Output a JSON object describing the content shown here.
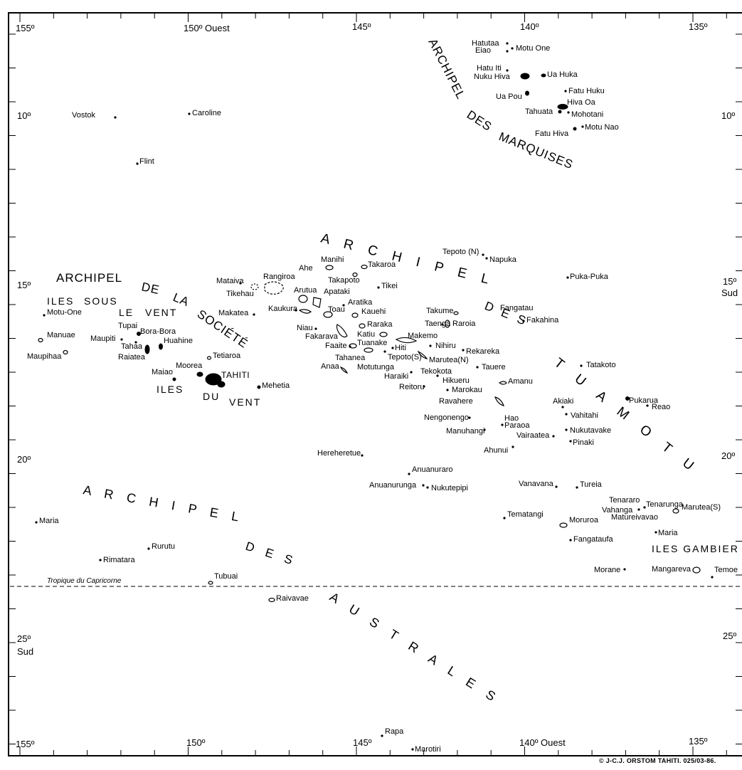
{
  "frame_labels": {
    "top": [
      {
        "text": "155º"
      },
      {
        "text": "150º Ouest"
      },
      {
        "text": "145º"
      },
      {
        "text": "140º"
      },
      {
        "text": "135º"
      }
    ],
    "bottom": [
      {
        "text": "155º"
      },
      {
        "text": "150º"
      },
      {
        "text": "145º"
      },
      {
        "text": "140º Ouest"
      },
      {
        "text": "135º"
      }
    ],
    "left": [
      {
        "text": "10º"
      },
      {
        "text": "15º"
      },
      {
        "text": "20º"
      },
      {
        "text": "25º"
      },
      {
        "text": "Sud"
      }
    ],
    "right": [
      {
        "text": "10º"
      },
      {
        "text": "15º"
      },
      {
        "text": "Sud"
      },
      {
        "text": "20º"
      },
      {
        "text": "25º"
      }
    ]
  },
  "tropic_label": "Tropique du Capricorne",
  "credit": "© J-C.J. ORSTOM TAHITI. 025/03-86.",
  "archipelagos": {
    "marquises": [
      "ARCHIPEL",
      "DES",
      "MARQUISES"
    ],
    "tuamotu": [
      "A R C H I P E L",
      "D E S",
      "T U A M O T U"
    ],
    "societe": [
      "ARCHIPEL",
      "DE",
      "LA",
      "SOCIÉTÉ"
    ],
    "australes": [
      "A R C H I P E L",
      "D E S",
      "A U S T R A L E S"
    ],
    "sous_le_vent": [
      "ILES",
      "SOUS",
      "LE",
      "VENT"
    ],
    "du_vent": [
      "ILES",
      "DU",
      "VENT"
    ],
    "gambier": "ILES GAMBIER"
  },
  "islands": [
    {
      "name": "Hatutaa"
    },
    {
      "name": "Eiao"
    },
    {
      "name": "Motu One"
    },
    {
      "name": "Hatu Iti"
    },
    {
      "name": "Nuku Hiva"
    },
    {
      "name": "Ua Huka"
    },
    {
      "name": "Ua Pou"
    },
    {
      "name": "Fatu Huku"
    },
    {
      "name": "Hiva Oa"
    },
    {
      "name": "Tahuata"
    },
    {
      "name": "Mohotani"
    },
    {
      "name": "Fatu Hiva"
    },
    {
      "name": "Motu Nao"
    },
    {
      "name": "Vostok"
    },
    {
      "name": "Caroline"
    },
    {
      "name": "Flint"
    },
    {
      "name": "Tepoto (N)"
    },
    {
      "name": "Napuka"
    },
    {
      "name": "Manihi"
    },
    {
      "name": "Ahe"
    },
    {
      "name": "Takaroa"
    },
    {
      "name": "Mataiva"
    },
    {
      "name": "Rangiroa"
    },
    {
      "name": "Takapoto"
    },
    {
      "name": "Tikei"
    },
    {
      "name": "Puka-Puka"
    },
    {
      "name": "Tikehau"
    },
    {
      "name": "Arutua"
    },
    {
      "name": "Apataki"
    },
    {
      "name": "Aratika"
    },
    {
      "name": "Fangatau"
    },
    {
      "name": "Makatea"
    },
    {
      "name": "Kaukura"
    },
    {
      "name": "Toau"
    },
    {
      "name": "Kauehi"
    },
    {
      "name": "Takume"
    },
    {
      "name": "Fakahina"
    },
    {
      "name": "Motu-One"
    },
    {
      "name": "Tupai"
    },
    {
      "name": "Bora-Bora"
    },
    {
      "name": "Niau"
    },
    {
      "name": "Raraka"
    },
    {
      "name": "Taenga"
    },
    {
      "name": "Raroia"
    },
    {
      "name": "Manuae"
    },
    {
      "name": "Maupiti"
    },
    {
      "name": "Tahaa"
    },
    {
      "name": "Huahine"
    },
    {
      "name": "Fakarava"
    },
    {
      "name": "Katiu"
    },
    {
      "name": "Makemo"
    },
    {
      "name": "Nihiru"
    },
    {
      "name": "Raiatea"
    },
    {
      "name": "Faaite"
    },
    {
      "name": "Tuanake"
    },
    {
      "name": "Hiti"
    },
    {
      "name": "Maupihaa"
    },
    {
      "name": "Tetiaroa"
    },
    {
      "name": "Tahanea"
    },
    {
      "name": "Tepoto(S)"
    },
    {
      "name": "Marutea(N)"
    },
    {
      "name": "Rekareka"
    },
    {
      "name": "Moorea"
    },
    {
      "name": "Anaa"
    },
    {
      "name": "Motutunga"
    },
    {
      "name": "Tauere"
    },
    {
      "name": "Tatakoto"
    },
    {
      "name": "Maiao"
    },
    {
      "name": "TAHITI"
    },
    {
      "name": "Tekokota"
    },
    {
      "name": "Haraiki"
    },
    {
      "name": "Hikueru"
    },
    {
      "name": "Amanu"
    },
    {
      "name": "Mehetia"
    },
    {
      "name": "Reitoru"
    },
    {
      "name": "Marokau"
    },
    {
      "name": "Ravahere"
    },
    {
      "name": "Hao"
    },
    {
      "name": "Pukarua"
    },
    {
      "name": "Akiaki"
    },
    {
      "name": "Reao"
    },
    {
      "name": "Vahitahi"
    },
    {
      "name": "Nengonengo"
    },
    {
      "name": "Paraoa"
    },
    {
      "name": "Manuhangi"
    },
    {
      "name": "Nukutavake"
    },
    {
      "name": "Vairaatea"
    },
    {
      "name": "Pinaki"
    },
    {
      "name": "Ahunui"
    },
    {
      "name": "Hereheretue"
    },
    {
      "name": "Anuanuraro"
    },
    {
      "name": "Anuanurunga"
    },
    {
      "name": "Nukutepipi"
    },
    {
      "name": "Vanavana"
    },
    {
      "name": "Tureia"
    },
    {
      "name": "Tenararo"
    },
    {
      "name": "Tenarunga"
    },
    {
      "name": "Vahanga"
    },
    {
      "name": "Marutea(S)"
    },
    {
      "name": "Matureivavao"
    },
    {
      "name": "Tematangi"
    },
    {
      "name": "Moruroa"
    },
    {
      "name": "Maria"
    },
    {
      "name": "Fangataufa"
    },
    {
      "name": "Maria"
    },
    {
      "name": "Rurutu"
    },
    {
      "name": "Rimatara"
    },
    {
      "name": "Tubuai"
    },
    {
      "name": "Morane"
    },
    {
      "name": "Mangareva"
    },
    {
      "name": "Temoe"
    },
    {
      "name": "Raivavae"
    },
    {
      "name": "Rapa"
    },
    {
      "name": "Marotiri"
    }
  ]
}
